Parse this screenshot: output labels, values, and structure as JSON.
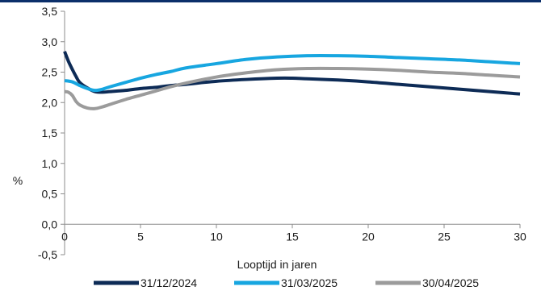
{
  "colors": {
    "top_rule": "#0b2f6a",
    "axis": "#8c8c8c"
  },
  "chart_data": {
    "type": "line",
    "title": "",
    "xlabel": "Looptijd in jaren",
    "ylabel": "%",
    "xlim": [
      0,
      30
    ],
    "ylim": [
      -0.5,
      3.5
    ],
    "x_ticks": [
      0,
      5,
      10,
      15,
      20,
      25,
      30
    ],
    "x_tick_labels": [
      "0",
      "5",
      "10",
      "15",
      "20",
      "25",
      "30"
    ],
    "y_ticks": [
      3.5,
      3.0,
      2.5,
      2.0,
      1.5,
      1.0,
      0.5,
      0.0,
      -0.5
    ],
    "y_tick_labels": [
      "3,5",
      "3,0",
      "2,5",
      "2,0",
      "1,5",
      "1,0",
      "0,5",
      "0,0",
      "-0,5"
    ],
    "grid": false,
    "legend_position": "bottom",
    "series": [
      {
        "name": "31/12/2024",
        "color": "#0d2b56",
        "points": [
          [
            0,
            2.84
          ],
          [
            0.25,
            2.68
          ],
          [
            0.5,
            2.55
          ],
          [
            0.75,
            2.43
          ],
          [
            1,
            2.33
          ],
          [
            1.5,
            2.24
          ],
          [
            2,
            2.18
          ],
          [
            2.5,
            2.17
          ],
          [
            3,
            2.18
          ],
          [
            4,
            2.2
          ],
          [
            5,
            2.23
          ],
          [
            6,
            2.25
          ],
          [
            7,
            2.28
          ],
          [
            8,
            2.3
          ],
          [
            10,
            2.35
          ],
          [
            12,
            2.38
          ],
          [
            14,
            2.4
          ],
          [
            15,
            2.4
          ],
          [
            16,
            2.39
          ],
          [
            18,
            2.37
          ],
          [
            20,
            2.34
          ],
          [
            22,
            2.3
          ],
          [
            24,
            2.26
          ],
          [
            26,
            2.22
          ],
          [
            28,
            2.18
          ],
          [
            30,
            2.14
          ]
        ]
      },
      {
        "name": "31/03/2025",
        "color": "#17a6e0",
        "points": [
          [
            0,
            2.36
          ],
          [
            0.5,
            2.34
          ],
          [
            1,
            2.28
          ],
          [
            1.5,
            2.23
          ],
          [
            2,
            2.2
          ],
          [
            2.5,
            2.22
          ],
          [
            3,
            2.26
          ],
          [
            4,
            2.33
          ],
          [
            5,
            2.4
          ],
          [
            6,
            2.46
          ],
          [
            7,
            2.51
          ],
          [
            8,
            2.57
          ],
          [
            10,
            2.64
          ],
          [
            12,
            2.71
          ],
          [
            14,
            2.75
          ],
          [
            16,
            2.77
          ],
          [
            18,
            2.77
          ],
          [
            20,
            2.76
          ],
          [
            22,
            2.74
          ],
          [
            24,
            2.72
          ],
          [
            26,
            2.7
          ],
          [
            28,
            2.67
          ],
          [
            30,
            2.64
          ]
        ]
      },
      {
        "name": "30/04/2025",
        "color": "#9b9b9b",
        "points": [
          [
            0,
            2.18
          ],
          [
            0.25,
            2.17
          ],
          [
            0.5,
            2.12
          ],
          [
            0.75,
            2.02
          ],
          [
            1,
            1.96
          ],
          [
            1.5,
            1.91
          ],
          [
            2,
            1.9
          ],
          [
            2.5,
            1.93
          ],
          [
            3,
            1.97
          ],
          [
            4,
            2.05
          ],
          [
            5,
            2.12
          ],
          [
            6,
            2.19
          ],
          [
            7,
            2.26
          ],
          [
            8,
            2.32
          ],
          [
            10,
            2.42
          ],
          [
            12,
            2.49
          ],
          [
            14,
            2.54
          ],
          [
            16,
            2.56
          ],
          [
            18,
            2.56
          ],
          [
            20,
            2.55
          ],
          [
            22,
            2.53
          ],
          [
            24,
            2.5
          ],
          [
            26,
            2.48
          ],
          [
            28,
            2.45
          ],
          [
            30,
            2.42
          ]
        ]
      }
    ]
  }
}
